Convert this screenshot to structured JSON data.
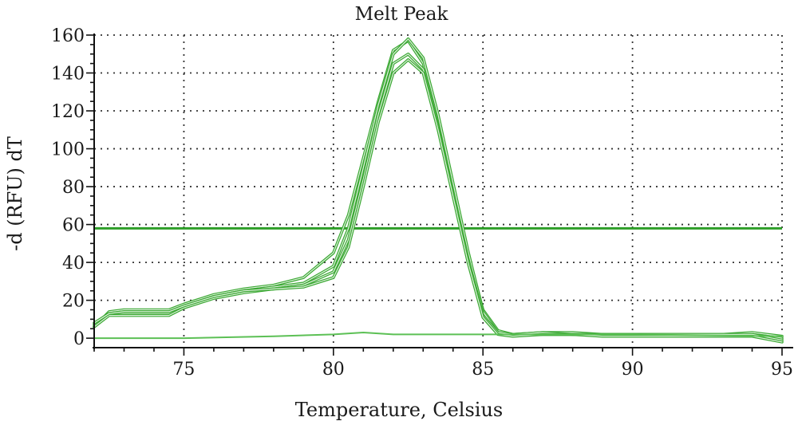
{
  "chart_data": {
    "type": "line",
    "title": "Melt Peak",
    "xlabel": "Temperature, Celsius",
    "ylabel": "-d (RFU) dT",
    "xlim": [
      72,
      95
    ],
    "ylim": [
      -5,
      160
    ],
    "x_ticks": [
      75,
      80,
      85,
      90,
      95
    ],
    "y_ticks": [
      0,
      20,
      40,
      60,
      80,
      100,
      120,
      140,
      160
    ],
    "grid": true,
    "threshold": 58,
    "colors": {
      "series": "#3aa832",
      "threshold": "#2e9e28",
      "baseline": "#5cc055",
      "grid": "#333333",
      "axis": "#111111"
    },
    "series": [
      {
        "x": [
          72,
          72.5,
          73,
          74,
          74.5,
          75,
          76,
          77,
          78,
          79,
          80,
          80.5,
          81,
          81.5,
          82,
          82.5,
          83,
          83.5,
          84,
          84.5,
          85,
          85.5,
          86,
          87,
          88,
          89,
          90,
          91,
          92,
          93,
          94,
          95
        ],
        "y": [
          6,
          14,
          15,
          15,
          15,
          18,
          23,
          26,
          28,
          32,
          45,
          65,
          95,
          125,
          152,
          157,
          145,
          115,
          80,
          45,
          15,
          4,
          2,
          3,
          3,
          2,
          2,
          2,
          2,
          2,
          3,
          1
        ]
      },
      {
        "x": [
          72,
          72.5,
          73,
          74,
          74.5,
          75,
          76,
          77,
          78,
          79,
          80,
          80.5,
          81,
          81.5,
          82,
          82.5,
          83,
          83.5,
          84,
          84.5,
          85,
          85.5,
          86,
          87,
          88,
          89,
          90,
          91,
          92,
          93,
          94,
          95
        ],
        "y": [
          7,
          13,
          13,
          13,
          13,
          17,
          22,
          25,
          27,
          29,
          38,
          58,
          90,
          123,
          150,
          158,
          148,
          118,
          82,
          46,
          14,
          3,
          2,
          2,
          2,
          2,
          1,
          1,
          1,
          2,
          2,
          0
        ]
      },
      {
        "x": [
          72,
          72.5,
          73,
          74,
          74.5,
          75,
          76,
          77,
          78,
          79,
          80,
          80.5,
          81,
          81.5,
          82,
          82.5,
          83,
          83.5,
          84,
          84.5,
          85,
          85.5,
          86,
          87,
          88,
          89,
          90,
          91,
          92,
          93,
          94,
          95
        ],
        "y": [
          6,
          12,
          12,
          12,
          12,
          16,
          21,
          24,
          26,
          28,
          35,
          52,
          84,
          118,
          145,
          150,
          142,
          112,
          77,
          42,
          12,
          3,
          2,
          3,
          2,
          2,
          2,
          2,
          2,
          2,
          2,
          -1
        ]
      },
      {
        "x": [
          72,
          72.5,
          73,
          74,
          74.5,
          75,
          76,
          77,
          78,
          79,
          80,
          80.5,
          81,
          81.5,
          82,
          82.5,
          83,
          83.5,
          84,
          84.5,
          85,
          85.5,
          86,
          87,
          88,
          89,
          90,
          91,
          92,
          93,
          94,
          95
        ],
        "y": [
          8,
          13,
          14,
          14,
          14,
          17,
          22,
          25,
          26,
          27,
          32,
          48,
          80,
          114,
          140,
          147,
          140,
          110,
          75,
          40,
          11,
          2,
          1,
          2,
          2,
          1,
          1,
          1,
          1,
          1,
          1,
          -2
        ]
      },
      {
        "x": [
          72,
          75,
          78,
          80,
          81,
          82,
          85,
          86,
          90,
          95
        ],
        "y": [
          0,
          0,
          1,
          2,
          3,
          2,
          2,
          2,
          2,
          1
        ]
      }
    ]
  }
}
